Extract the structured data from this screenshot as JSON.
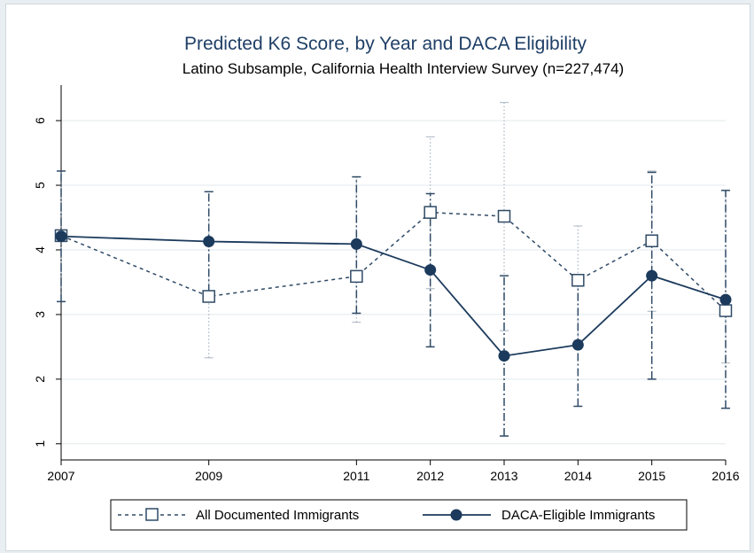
{
  "chart_data": {
    "type": "line",
    "title": "Predicted K6 Score, by Year and DACA Eligibility",
    "subtitle": "Latino Subsample, California Health Interview Survey (n=227,474)",
    "xlabel": "",
    "ylabel": "",
    "x": [
      2007,
      2009,
      2011,
      2012,
      2013,
      2014,
      2015,
      2016
    ],
    "x_tick_labels": [
      "2007",
      "2009",
      "2011",
      "2012",
      "2013",
      "2014",
      "2015",
      "2016"
    ],
    "y_ticks": [
      1,
      2,
      3,
      4,
      5,
      6
    ],
    "y_tick_labels": [
      "1",
      "2",
      "3",
      "4",
      "5",
      "6"
    ],
    "xlim": [
      2007,
      2016
    ],
    "ylim": [
      0.75,
      6.55
    ],
    "grid": "horizontal",
    "legend_position": "bottom",
    "series": [
      {
        "name": "All Documented Immigrants",
        "style": "dashed",
        "marker": "hollow-square",
        "color": "#2f4a66",
        "values": [
          4.22,
          3.28,
          3.59,
          4.58,
          4.52,
          3.53,
          4.14,
          3.06
        ],
        "ci_low": [
          3.2,
          2.33,
          2.88,
          3.4,
          2.75,
          2.6,
          3.05,
          2.25
        ],
        "ci_high": [
          5.22,
          4.9,
          5.13,
          5.75,
          6.28,
          4.37,
          5.22,
          4.92
        ]
      },
      {
        "name": "DACA-Eligible Immigrants",
        "style": "solid",
        "marker": "filled-circle",
        "color": "#1b3a5c",
        "values": [
          4.21,
          4.13,
          4.09,
          3.69,
          2.36,
          2.53,
          3.6,
          3.23
        ],
        "ci_low": [
          3.2,
          3.35,
          3.02,
          2.5,
          1.12,
          1.58,
          2.0,
          1.55
        ],
        "ci_high": [
          5.22,
          4.9,
          5.13,
          4.87,
          3.6,
          3.48,
          5.2,
          4.92
        ]
      }
    ]
  }
}
